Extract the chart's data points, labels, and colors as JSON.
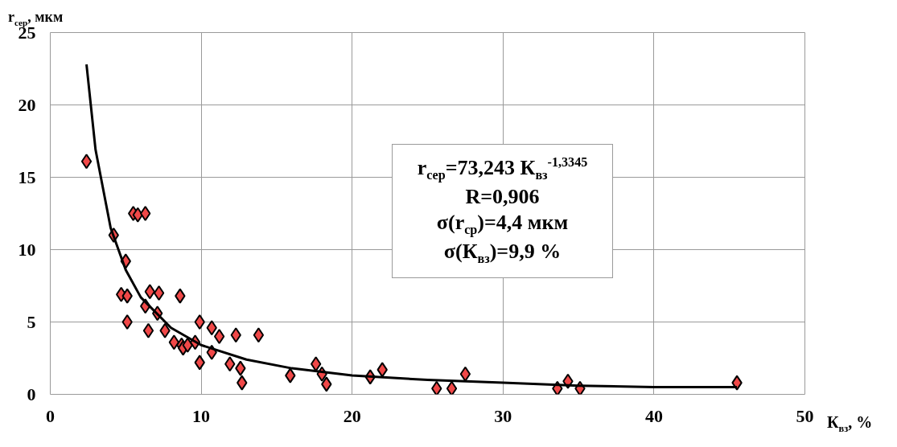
{
  "chart_data": {
    "type": "scatter",
    "xlabel": "К$_{вз}$, %",
    "ylabel": "r$_{сер}$, мкм",
    "xlim": [
      0,
      50
    ],
    "ylim": [
      0,
      25
    ],
    "xticks": [
      0,
      10,
      20,
      30,
      40,
      50
    ],
    "yticks": [
      0,
      5,
      10,
      15,
      20,
      25
    ],
    "grid": true,
    "marker": "diamond",
    "series": [
      {
        "color": "#f04848",
        "x": [
          2.4,
          4.2,
          5.5,
          5.8,
          6.3,
          5.0,
          4.7,
          5.1,
          6.6,
          7.2,
          8.6,
          5.1,
          6.5,
          6.3,
          7.1,
          7.6,
          8.2,
          8.7,
          8.8,
          9.1,
          9.6,
          9.9,
          10.7,
          11.2,
          12.3,
          13.8,
          9.9,
          10.7,
          11.9,
          12.6,
          12.7,
          15.9,
          17.6,
          18.0,
          18.3,
          21.2,
          22.0,
          25.6,
          26.6,
          27.5,
          33.6,
          34.3,
          35.1,
          45.5
        ],
        "values": [
          16.1,
          11.0,
          12.5,
          12.4,
          12.5,
          9.2,
          6.9,
          6.8,
          7.1,
          7.0,
          6.8,
          5.0,
          4.4,
          6.1,
          5.6,
          4.4,
          3.6,
          3.4,
          3.2,
          3.4,
          3.6,
          5.0,
          4.6,
          4.0,
          4.1,
          4.1,
          2.2,
          2.9,
          2.1,
          1.8,
          0.8,
          1.3,
          2.1,
          1.4,
          0.7,
          1.2,
          1.7,
          0.4,
          0.4,
          1.4,
          0.4,
          0.9,
          0.4,
          0.8
        ]
      },
      {
        "type": "line",
        "color": "#000000",
        "marker": "none",
        "x": [
          2.4,
          3,
          4,
          5,
          6,
          8,
          10,
          13,
          16,
          20,
          25,
          30,
          35,
          40,
          45.5
        ],
        "values": [
          22.8,
          16.9,
          11.5,
          8.6,
          6.7,
          4.6,
          3.4,
          2.4,
          1.8,
          1.3,
          1.0,
          0.8,
          0.6,
          0.5,
          0.5
        ]
      }
    ],
    "annotations": [
      "r$_{сер}$=73,243 К$_{вз}$$^{-1,3345}$",
      "R=0,906",
      "σ(r$_{ср}$)=4,4 мкм",
      "σ(К$_{вз}$)=9,9 %"
    ]
  }
}
